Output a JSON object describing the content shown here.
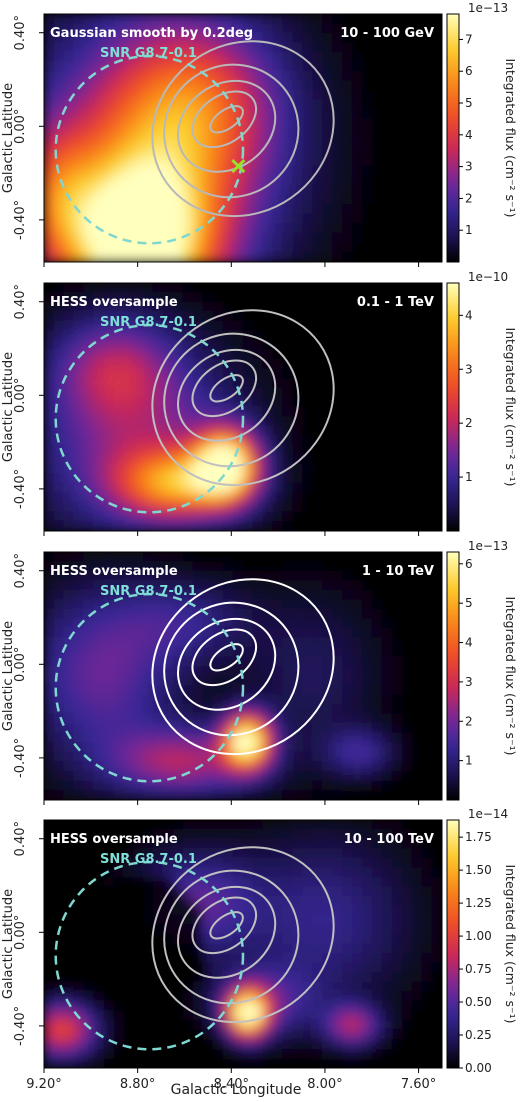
{
  "figure": {
    "xlabel": "Galactic Longitude",
    "ylabel": "Galactic Latitude",
    "colorbar_label": "Integrated flux (cm⁻² s⁻¹)"
  },
  "chart_data": [
    {
      "type": "heatmap",
      "title_left": "Gaussian smooth by 0.2deg",
      "title_right": "10 - 100 GeV",
      "snr_label": "SNR G8.7-0.1",
      "x_ticks": [
        "9.20°",
        "8.80°",
        "8.40°",
        "8.00°",
        "7.60°"
      ],
      "y_ticks": [
        "0.40°",
        "0.00°",
        "-0.40°"
      ],
      "xlim": [
        9.2,
        7.5
      ],
      "ylim": [
        -0.58,
        0.48
      ],
      "colorbar_exponent": "1e−13",
      "colorbar_ticks": [
        "1",
        "2",
        "3",
        "4",
        "5",
        "6",
        "7"
      ],
      "colorbar_range": [
        0,
        7.8
      ],
      "marker": {
        "l": 8.37,
        "b": -0.17,
        "symbol": "x"
      },
      "contour_color": "#b8b8b8",
      "show_x_ticklabels": false
    },
    {
      "type": "heatmap",
      "title_left": "HESS oversample",
      "title_right": "0.1 - 1 TeV",
      "snr_label": "SNR G8.7-0.1",
      "x_ticks": [
        "9.20°",
        "8.80°",
        "8.40°",
        "8.00°",
        "7.60°"
      ],
      "y_ticks": [
        "0.40°",
        "0.00°",
        "-0.40°"
      ],
      "xlim": [
        9.2,
        7.5
      ],
      "ylim": [
        -0.58,
        0.48
      ],
      "colorbar_exponent": "1e−10",
      "colorbar_ticks": [
        "1",
        "2",
        "3",
        "4"
      ],
      "colorbar_range": [
        0,
        4.6
      ],
      "contour_color": "#c0c0c0",
      "show_x_ticklabels": false
    },
    {
      "type": "heatmap",
      "title_left": "HESS oversample",
      "title_right": "1 - 10 TeV",
      "snr_label": "SNR G8.7-0.1",
      "x_ticks": [
        "9.20°",
        "8.80°",
        "8.40°",
        "8.00°",
        "7.60°"
      ],
      "y_ticks": [
        "0.40°",
        "0.00°",
        "-0.40°"
      ],
      "xlim": [
        9.2,
        7.5
      ],
      "ylim": [
        -0.58,
        0.48
      ],
      "colorbar_exponent": "1e−13",
      "colorbar_ticks": [
        "1",
        "2",
        "3",
        "4",
        "5",
        "6"
      ],
      "colorbar_range": [
        0,
        6.3
      ],
      "contour_color": "#ffffff",
      "show_x_ticklabels": false
    },
    {
      "type": "heatmap",
      "title_left": "HESS oversample",
      "title_right": "10 - 100 TeV",
      "snr_label": "SNR G8.7-0.1",
      "x_ticks": [
        "9.20°",
        "8.80°",
        "8.40°",
        "8.00°",
        "7.60°"
      ],
      "y_ticks": [
        "0.40°",
        "0.00°",
        "-0.40°"
      ],
      "xlim": [
        9.2,
        7.5
      ],
      "ylim": [
        -0.58,
        0.48
      ],
      "colorbar_exponent": "1e−14",
      "colorbar_ticks": [
        "0.00",
        "0.25",
        "0.50",
        "0.75",
        "1.00",
        "1.25",
        "1.50",
        "1.75"
      ],
      "colorbar_range": [
        0,
        1.88
      ],
      "contour_color": "#c0c0c0",
      "show_x_ticklabels": true
    }
  ],
  "snr": {
    "l": 8.75,
    "b": -0.1,
    "radius_deg": 0.4,
    "color": "#7fd7d0"
  },
  "colors": {
    "snr_label": "#7fe0d8",
    "marker": "#9ade2a"
  }
}
